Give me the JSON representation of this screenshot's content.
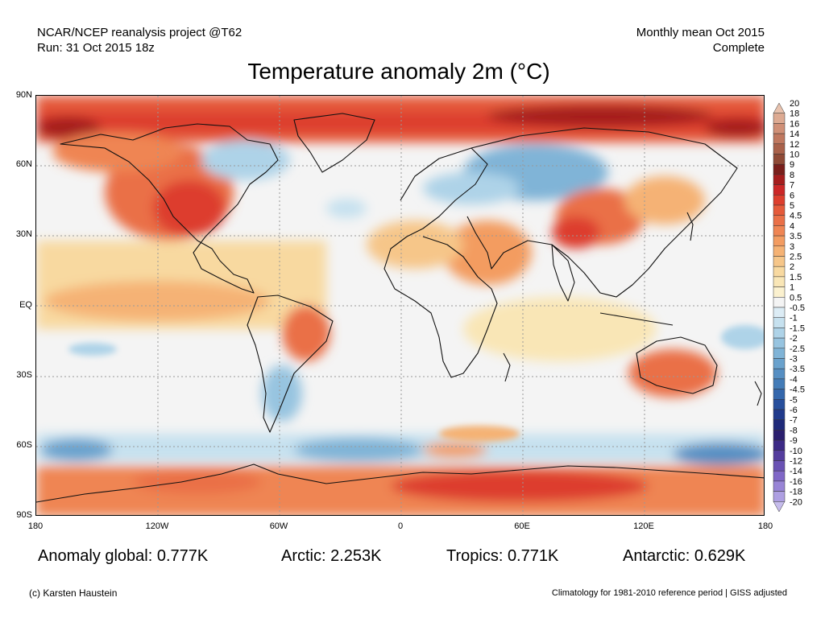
{
  "header": {
    "source_line1": "NCAR/NCEP reanalysis project @T62",
    "source_line2": "Run: 31 Oct 2015 18z",
    "period_line1": "Monthly mean Oct 2015",
    "period_line2": "Complete"
  },
  "title": "Temperature anomaly 2m (°C)",
  "axes": {
    "lat_labels": [
      "90N",
      "60N",
      "30N",
      "EQ",
      "30S",
      "60S",
      "90S"
    ],
    "lon_labels": [
      "180",
      "120W",
      "60W",
      "0",
      "60E",
      "120E",
      "180"
    ]
  },
  "legend": {
    "labels": [
      "20",
      "18",
      "16",
      "14",
      "12",
      "10",
      "9",
      "8",
      "7",
      "6",
      "5",
      "4.5",
      "4",
      "3.5",
      "3",
      "2.5",
      "2",
      "1.5",
      "1",
      "0.5",
      "-0.5",
      "-1",
      "-1.5",
      "-2",
      "-2.5",
      "-3",
      "-3.5",
      "-4",
      "-4.5",
      "-5",
      "-6",
      "-7",
      "-8",
      "-9",
      "-10",
      "-12",
      "-14",
      "-16",
      "-18",
      "-20"
    ],
    "colors": [
      "#e8c2ae",
      "#ddaa92",
      "#d09077",
      "#c0785f",
      "#a9614a",
      "#8f4a36",
      "#7a1f1b",
      "#a51d1d",
      "#cc2727",
      "#dd3e2d",
      "#e55a3a",
      "#ea7047",
      "#ef8553",
      "#f39c61",
      "#f5b274",
      "#f6c689",
      "#f8d9a0",
      "#f9e6b6",
      "#fbf1cf",
      "#f4f4f4",
      "#dcecf5",
      "#c6e1ef",
      "#aed3e8",
      "#97c4e0",
      "#80b4d7",
      "#6aa2cd",
      "#568fc3",
      "#447cb8",
      "#3467ac",
      "#274f9d",
      "#203a8c",
      "#1f2a7a",
      "#2b1f6e",
      "#3c2a86",
      "#543d9e",
      "#6a52b4",
      "#8067c7",
      "#9884d6",
      "#ae9fe2",
      "#c6bcec"
    ]
  },
  "stats": {
    "global": "Anomaly global: 0.777K",
    "arctic": "Arctic: 2.253K",
    "tropics": "Tropics: 0.771K",
    "antarctic": "Antarctic: 0.629K"
  },
  "footer": {
    "credit": "(c) Karsten Haustein",
    "note": "Climatology for 1981-2010 reference period | GISS adjusted"
  }
}
